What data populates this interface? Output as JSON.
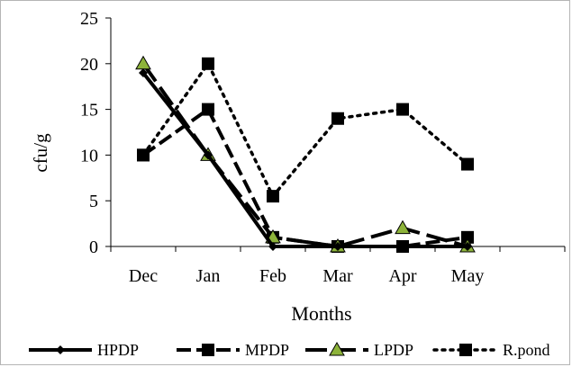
{
  "chart_data": {
    "type": "line",
    "title": "",
    "xlabel": "Months",
    "ylabel": "cfu/g",
    "categories": [
      "Dec",
      "Jan",
      "Feb",
      "Mar",
      "Apr",
      "May"
    ],
    "ylim": [
      0,
      25
    ],
    "yticks": [
      "0",
      "5",
      "10",
      "15",
      "20",
      "25"
    ],
    "grid": false,
    "legend_position": "bottom",
    "series": [
      {
        "name": "HPDP",
        "values": [
          19,
          10,
          0,
          0,
          0,
          0
        ],
        "style": "solid",
        "marker": "diamond",
        "color": "#000000"
      },
      {
        "name": "MPDP",
        "values": [
          10,
          15,
          1,
          0,
          0,
          1
        ],
        "style": "dashed",
        "marker": "square",
        "color": "#000000"
      },
      {
        "name": "LPDP",
        "values": [
          20,
          10,
          1,
          0,
          2,
          0
        ],
        "style": "long-dash",
        "marker": "triangle",
        "color": "#000000",
        "marker_fill": "#8db33a"
      },
      {
        "name": "R.pond",
        "values": [
          10,
          20,
          5.5,
          14,
          15,
          9
        ],
        "style": "dotted",
        "marker": "square",
        "color": "#000000"
      }
    ]
  }
}
